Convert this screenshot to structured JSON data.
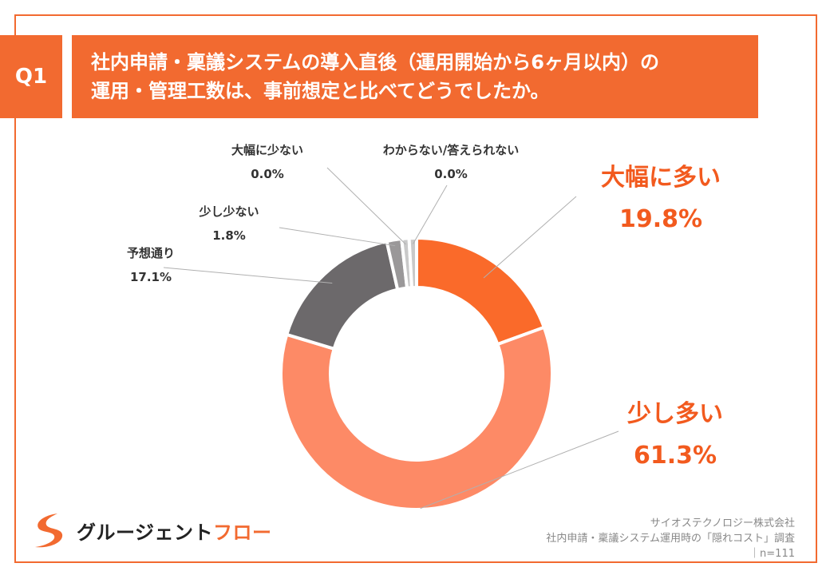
{
  "header": {
    "q_label": "Q1",
    "title_line1": "社内申請・稟議システムの導入直後（運用開始から6ヶ月以内）の",
    "title_line2": "運用・管理工数は、事前想定と比べてどうでしたか。"
  },
  "chart_data": {
    "type": "pie",
    "donut": true,
    "slices": [
      {
        "label": "大幅に多い",
        "value": 19.8,
        "display": "19.8%",
        "color": "#fa6a2a"
      },
      {
        "label": "少し多い",
        "value": 61.3,
        "display": "61.3%",
        "color": "#fd8a66"
      },
      {
        "label": "予想通り",
        "value": 17.1,
        "display": "17.1%",
        "color": "#6c696b"
      },
      {
        "label": "少し少ない",
        "value": 1.8,
        "display": "1.8%",
        "color": "#9a9899"
      },
      {
        "label": "大幅に少ない",
        "value": 0.0,
        "display": "0.0%",
        "color": "#c9c9c9"
      },
      {
        "label": "わからない/答えられない",
        "value": 0.0,
        "display": "0.0%",
        "color": "#c9c9c9"
      }
    ]
  },
  "footer": {
    "logo_part1": "グルージェント",
    "logo_part2": "フロー",
    "credit_line1": "サイオステクノロジー株式会社",
    "credit_line2": "社内申請・稟議システム運用時の「隠れコスト」調査",
    "credit_line3": "｜n=111"
  },
  "colors": {
    "accent": "#f26a30",
    "label_highlight": "#f25a1e",
    "label_dark": "#333333"
  }
}
